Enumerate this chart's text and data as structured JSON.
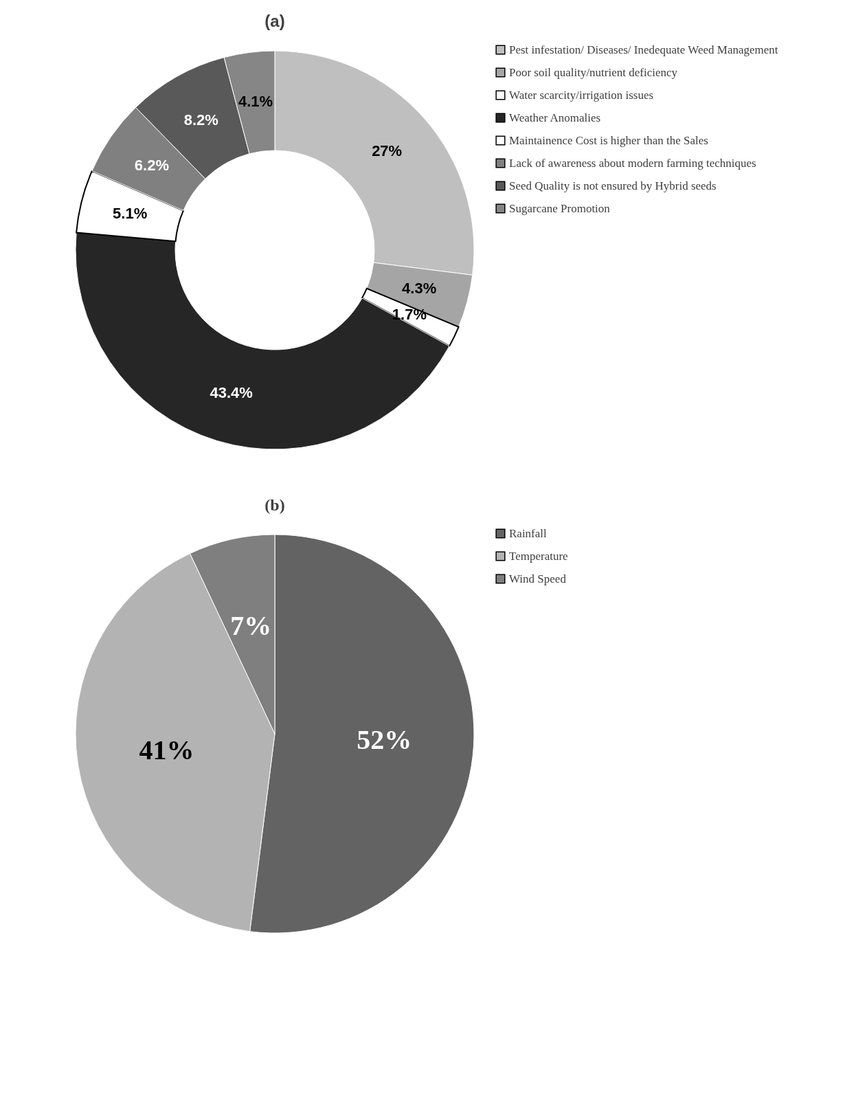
{
  "chart_data": [
    {
      "type": "donut",
      "title": "(a)",
      "categories": [
        "Pest infestation/ Diseases/ Inedequate Weed Management",
        "Poor soil quality/nutrient deficiency",
        "Water scarcity/irrigation issues",
        "Weather Anomalies",
        "Maintainence Cost is higher than the Sales",
        "Lack of awareness about modern farming techniques",
        "Seed Quality is not ensured by Hybrid seeds",
        "Sugarcane Promotion"
      ],
      "values": [
        27,
        4.3,
        1.7,
        43.4,
        5.1,
        6.2,
        8.2,
        4.1
      ],
      "colors": [
        "#bfbfbf",
        "#a5a5a5",
        "#ffffff",
        "#262626",
        "#ffffff",
        "#808080",
        "#595959",
        "#868686"
      ],
      "value_labels": [
        "27%",
        "4.3%",
        "1.7%",
        "43.4%",
        "5.1%",
        "6.2%",
        "8.2%",
        "4.1%"
      ],
      "legend": "right"
    },
    {
      "type": "pie",
      "title": "(b)",
      "categories": [
        "Rainfall",
        "Temperature",
        "Wind Speed"
      ],
      "values": [
        52,
        41,
        7
      ],
      "colors": [
        "#636363",
        "#b3b3b3",
        "#7f7f7f"
      ],
      "value_labels": [
        "52%",
        "41%",
        "7%"
      ],
      "legend": "right"
    }
  ]
}
